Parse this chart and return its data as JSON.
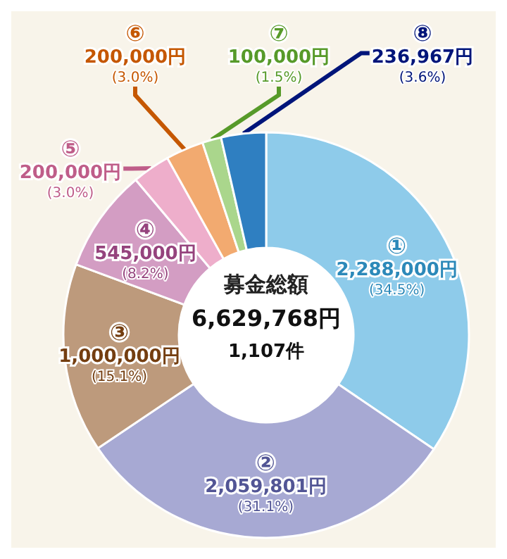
{
  "chart_data": {
    "type": "donut",
    "title": "募金総額",
    "subtitle": "6,629,768円",
    "annotations": [
      "1,107件"
    ],
    "categories": [
      "①",
      "②",
      "③",
      "④",
      "⑤",
      "⑥",
      "⑦",
      "⑧"
    ],
    "values": [
      2288000,
      2059801,
      1000000,
      545000,
      200000,
      200000,
      100000,
      236967
    ],
    "value_labels": [
      "2,288,000円\n(34.5%)",
      "2,059,801円\n(31.1%)",
      "1,000,000円\n(15.1%)",
      "545,000円\n(8.2%)",
      "200,000円\n(3.0%)",
      "200,000円\n(3.0%)",
      "100,000円\n(1.5%)",
      "236,967円\n(3.6%)"
    ],
    "colors": [
      "#8ecbea",
      "#a7a9d3",
      "#bd9a7c",
      "#d39dc3",
      "#eeaecb",
      "#f2aa70",
      "#aad68c",
      "#2f7fc1"
    ],
    "legend": false
  }
}
